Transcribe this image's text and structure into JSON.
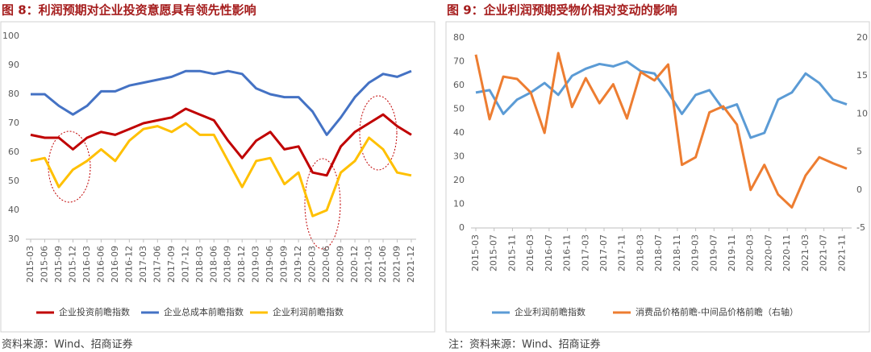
{
  "chart_data": [
    {
      "type": "line",
      "title": "图 8：利润预期对企业投资意愿具有领先性影响",
      "categories": [
        "2015-03",
        "2015-06",
        "2015-09",
        "2015-12",
        "2016-03",
        "2016-06",
        "2016-09",
        "2016-12",
        "2017-03",
        "2017-06",
        "2017-09",
        "2017-12",
        "2018-03",
        "2018-06",
        "2018-09",
        "2018-12",
        "2019-03",
        "2019-06",
        "2019-09",
        "2019-12",
        "2020-03",
        "2020-06",
        "2020-09",
        "2020-12",
        "2021-03",
        "2021-06",
        "2021-09",
        "2021-12"
      ],
      "series": [
        {
          "name": "企业投资前瞻指数",
          "color": "#c00000",
          "values": [
            66,
            65,
            65,
            61,
            65,
            67,
            66,
            68,
            70,
            71,
            72,
            75,
            73,
            71,
            64,
            58,
            64,
            67,
            61,
            62,
            53,
            52,
            62,
            67,
            70,
            73,
            69,
            66
          ]
        },
        {
          "name": "企业总成本前瞻指数",
          "color": "#4472c4",
          "values": [
            80,
            80,
            76,
            73,
            76,
            81,
            81,
            83,
            84,
            85,
            86,
            88,
            88,
            87,
            88,
            87,
            82,
            80,
            79,
            79,
            74,
            66,
            72,
            79,
            84,
            87,
            86,
            88
          ]
        },
        {
          "name": "企业利润前瞻指数",
          "color": "#ffc000",
          "values": [
            57,
            58,
            48,
            54,
            57,
            61,
            57,
            64,
            68,
            69,
            67,
            70,
            66,
            66,
            57,
            48,
            57,
            58,
            49,
            53,
            38,
            40,
            53,
            57,
            65,
            61,
            53,
            52
          ]
        }
      ],
      "ylim": [
        30,
        100
      ],
      "yticks": [
        30,
        40,
        50,
        60,
        70,
        80,
        90,
        100
      ],
      "grid": false,
      "legend": "bottom",
      "source": "资料来源：Wind、招商证券"
    },
    {
      "type": "line",
      "title": "图 9：企业利润预期受物价相对变动的影响",
      "x": [
        "2015-03",
        "2015-06",
        "2015-09",
        "2015-12",
        "2016-03",
        "2016-06",
        "2016-09",
        "2016-12",
        "2017-03",
        "2017-06",
        "2017-09",
        "2017-12",
        "2018-03",
        "2018-06",
        "2018-09",
        "2018-12",
        "2019-03",
        "2019-06",
        "2019-09",
        "2019-12",
        "2020-03",
        "2020-06",
        "2020-09",
        "2020-12",
        "2021-03",
        "2021-06",
        "2021-09",
        "2021-12"
      ],
      "xticks": [
        "2015-03",
        "2015-07",
        "2015-11",
        "2016-03",
        "2016-07",
        "2016-11",
        "2017-03",
        "2017-07",
        "2017-11",
        "2018-03",
        "2018-07",
        "2018-11",
        "2019-03",
        "2019-07",
        "2019-11",
        "2020-03",
        "2020-07",
        "2020-11",
        "2021-03",
        "2021-07",
        "2021-11"
      ],
      "series": [
        {
          "name": "企业利润前瞻指数",
          "color": "#5b9bd5",
          "values": [
            57,
            58,
            48,
            54,
            57,
            61,
            56,
            64,
            67,
            69,
            68,
            70,
            66,
            65,
            57,
            48,
            56,
            58,
            50,
            52,
            38,
            40,
            54,
            57,
            65,
            61,
            54,
            52
          ]
        },
        {
          "name": "消费品价格前瞻-中间品价格前瞻（右轴）",
          "color": "#ed7d31",
          "axis": "y2",
          "values": [
            17.8,
            9.3,
            14.9,
            14.6,
            12.8,
            7.5,
            18,
            10.9,
            14.7,
            11.4,
            13.9,
            9.4,
            15.5,
            14.4,
            16.5,
            3.3,
            4.3,
            10.2,
            11,
            8.6,
            0,
            3.3,
            -0.6,
            -2.3,
            1.9,
            4.3,
            3.5,
            2.8
          ]
        }
      ],
      "ylim": [
        0,
        80
      ],
      "yticks": [
        0,
        10,
        20,
        30,
        40,
        50,
        60,
        70,
        80
      ],
      "y2lim": [
        -5,
        20
      ],
      "y2ticks": [
        -5,
        0,
        5,
        10,
        15,
        20
      ],
      "grid": false,
      "legend": "bottom",
      "source": "注：资料来源：Wind、招商证券"
    }
  ]
}
